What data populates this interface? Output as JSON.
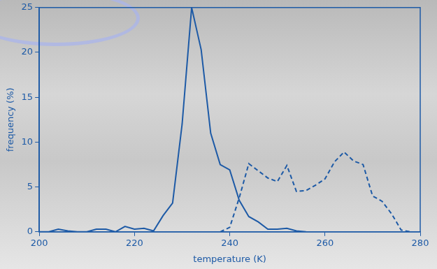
{
  "chart_data": {
    "type": "line",
    "x_label": "temperature (K)",
    "y_label": "frequency (%)",
    "xlim": [
      200,
      280
    ],
    "xticks": [
      200,
      220,
      240,
      260,
      280
    ],
    "ylim": [
      0,
      25
    ],
    "yticks": [
      0,
      5,
      10,
      15,
      20,
      25
    ],
    "grid": false,
    "series": [
      {
        "color": "#1d5aa6",
        "line_style": "solid",
        "x": [
          200,
          202,
          204,
          206,
          208,
          210,
          212,
          214,
          216,
          218,
          220,
          222,
          224,
          226,
          228,
          230,
          232,
          234,
          236,
          238,
          240,
          242,
          244,
          246,
          248,
          250,
          252,
          254,
          256
        ],
        "values": [
          0,
          0,
          0.3,
          0.1,
          0,
          0,
          0.3,
          0.3,
          0,
          0.6,
          0.3,
          0.4,
          0.1,
          1.8,
          3.2,
          12,
          25,
          20.3,
          11,
          7.5,
          6.9,
          3.5,
          1.7,
          1.1,
          0.3,
          0.3,
          0.4,
          0.1,
          0
        ]
      },
      {
        "color": "#1d5aa6",
        "line_style": "dashed",
        "x": [
          238,
          240,
          242,
          244,
          246,
          248,
          250,
          252,
          254,
          256,
          258,
          260,
          262,
          264,
          266,
          268,
          270,
          272,
          274,
          276,
          278
        ],
        "values": [
          0,
          0.5,
          3.8,
          7.6,
          6.8,
          6.0,
          5.6,
          7.4,
          4.5,
          4.6,
          5.2,
          5.9,
          7.8,
          8.9,
          7.9,
          7.5,
          4.0,
          3.4,
          2.0,
          0.2,
          0
        ]
      }
    ]
  }
}
